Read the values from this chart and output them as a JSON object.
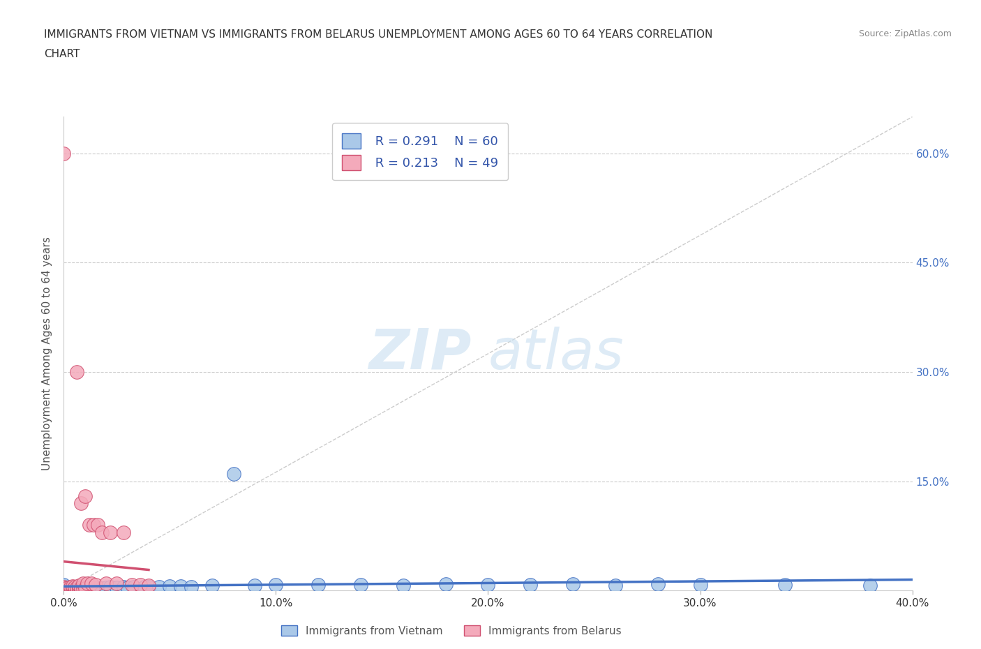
{
  "title_line1": "IMMIGRANTS FROM VIETNAM VS IMMIGRANTS FROM BELARUS UNEMPLOYMENT AMONG AGES 60 TO 64 YEARS CORRELATION",
  "title_line2": "CHART",
  "source_text": "Source: ZipAtlas.com",
  "ylabel": "Unemployment Among Ages 60 to 64 years",
  "xlim": [
    0.0,
    0.4
  ],
  "ylim": [
    0.0,
    0.65
  ],
  "xticks": [
    0.0,
    0.1,
    0.2,
    0.3,
    0.4
  ],
  "xticklabels": [
    "0.0%",
    "10.0%",
    "20.0%",
    "30.0%",
    "40.0%"
  ],
  "yticks": [
    0.0,
    0.15,
    0.3,
    0.45,
    0.6
  ],
  "yticklabels_right": [
    "",
    "15.0%",
    "30.0%",
    "45.0%",
    "60.0%"
  ],
  "vietnam_R": 0.291,
  "vietnam_N": 60,
  "belarus_R": 0.213,
  "belarus_N": 49,
  "vietnam_color": "#aac8e8",
  "belarus_color": "#f4aabb",
  "vietnam_line_color": "#4472c4",
  "belarus_line_color": "#d05070",
  "legend_color": "#3355aa",
  "watermark_zip": "ZIP",
  "watermark_atlas": "atlas",
  "vietnam_x": [
    0.0,
    0.0,
    0.0,
    0.0,
    0.0,
    0.0,
    0.0,
    0.0,
    0.002,
    0.002,
    0.003,
    0.003,
    0.004,
    0.005,
    0.005,
    0.005,
    0.006,
    0.006,
    0.007,
    0.007,
    0.008,
    0.008,
    0.009,
    0.01,
    0.01,
    0.011,
    0.012,
    0.013,
    0.014,
    0.015,
    0.016,
    0.018,
    0.02,
    0.022,
    0.025,
    0.028,
    0.03,
    0.033,
    0.038,
    0.04,
    0.045,
    0.05,
    0.055,
    0.06,
    0.07,
    0.08,
    0.09,
    0.1,
    0.12,
    0.14,
    0.16,
    0.18,
    0.2,
    0.22,
    0.24,
    0.26,
    0.28,
    0.3,
    0.34,
    0.38
  ],
  "vietnam_y": [
    0.0,
    0.0,
    0.002,
    0.003,
    0.004,
    0.005,
    0.006,
    0.008,
    0.0,
    0.003,
    0.0,
    0.004,
    0.002,
    0.0,
    0.003,
    0.005,
    0.002,
    0.004,
    0.001,
    0.003,
    0.002,
    0.005,
    0.003,
    0.002,
    0.005,
    0.003,
    0.004,
    0.003,
    0.004,
    0.003,
    0.004,
    0.003,
    0.004,
    0.005,
    0.004,
    0.005,
    0.004,
    0.005,
    0.005,
    0.005,
    0.005,
    0.006,
    0.006,
    0.005,
    0.007,
    0.16,
    0.007,
    0.008,
    0.008,
    0.008,
    0.007,
    0.009,
    0.008,
    0.008,
    0.009,
    0.007,
    0.009,
    0.008,
    0.008,
    0.007
  ],
  "belarus_x": [
    0.0,
    0.0,
    0.0,
    0.0,
    0.0,
    0.0,
    0.0,
    0.0,
    0.001,
    0.001,
    0.002,
    0.002,
    0.002,
    0.003,
    0.003,
    0.003,
    0.004,
    0.004,
    0.004,
    0.005,
    0.005,
    0.005,
    0.006,
    0.006,
    0.006,
    0.007,
    0.007,
    0.007,
    0.008,
    0.008,
    0.008,
    0.009,
    0.009,
    0.01,
    0.01,
    0.011,
    0.012,
    0.013,
    0.014,
    0.015,
    0.016,
    0.018,
    0.02,
    0.022,
    0.025,
    0.028,
    0.032,
    0.036,
    0.04
  ],
  "belarus_y": [
    0.0,
    0.0,
    0.001,
    0.002,
    0.003,
    0.004,
    0.005,
    0.6,
    0.001,
    0.003,
    0.001,
    0.002,
    0.004,
    0.001,
    0.003,
    0.005,
    0.001,
    0.003,
    0.006,
    0.001,
    0.003,
    0.005,
    0.002,
    0.004,
    0.3,
    0.002,
    0.004,
    0.007,
    0.002,
    0.004,
    0.12,
    0.003,
    0.01,
    0.003,
    0.13,
    0.01,
    0.09,
    0.01,
    0.09,
    0.008,
    0.09,
    0.08,
    0.01,
    0.08,
    0.01,
    0.08,
    0.008,
    0.008,
    0.007
  ]
}
